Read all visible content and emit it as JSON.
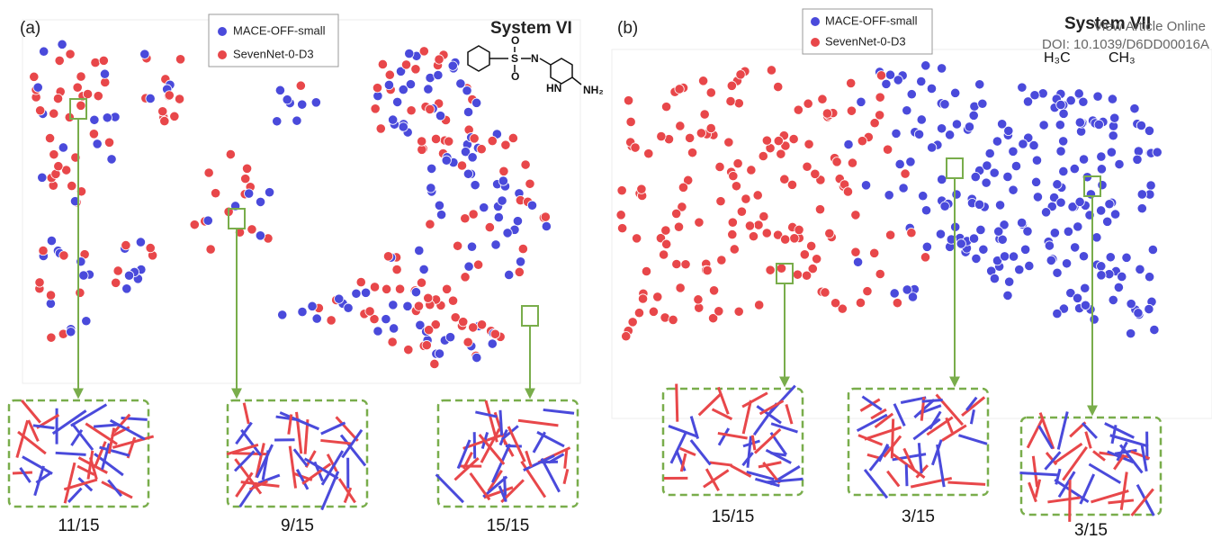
{
  "watermark": {
    "link": "View Article Online",
    "doi": "DOI: 10.1039/D6DD00016A"
  },
  "panels": [
    {
      "label": "(a)",
      "title": "System VI",
      "legend": [
        "MACE-OFF-small",
        "SevenNet-0-D3"
      ],
      "molecule_labels": [
        "S",
        "O",
        "O",
        "N",
        "HN",
        "NH₂"
      ],
      "insets": [
        "11/15",
        "9/15",
        "15/15"
      ]
    },
    {
      "label": "(b)",
      "title": "System VII",
      "legend": [
        "MACE-OFF-small",
        "SevenNet-0-D3"
      ],
      "molecule_labels": [
        "H₃C",
        "CH₃"
      ],
      "insets": [
        "15/15",
        "3/15",
        "3/15"
      ]
    }
  ]
}
